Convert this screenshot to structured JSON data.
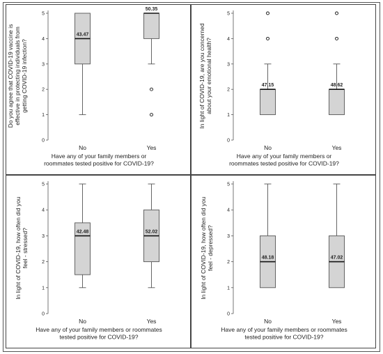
{
  "chart_data": [
    {
      "type": "boxplot",
      "title": "",
      "xlabel": [
        "Have any of your family members or",
        "roommates tested positive for COVID-19?"
      ],
      "ylabel": [
        "Do you agree that COVID-19 vaccine is",
        "effective in protecting individuals from",
        "getting COVID-19 infection?"
      ],
      "ylim": [
        0,
        5
      ],
      "yticks": [
        "0",
        "1",
        "2",
        "3",
        "4",
        "5"
      ],
      "grid": false,
      "categories": [
        "No",
        "Yes"
      ],
      "boxes": [
        {
          "category": "No",
          "whisker_low": 1,
          "q1": 3,
          "median": 4,
          "q3": 5,
          "whisker_high": 5,
          "outliers": [],
          "label": "43.47"
        },
        {
          "category": "Yes",
          "whisker_low": 3,
          "q1": 4,
          "median": 5,
          "q3": 5,
          "whisker_high": 5,
          "outliers": [
            1,
            2
          ],
          "label": "50.35"
        }
      ]
    },
    {
      "type": "boxplot",
      "title": "",
      "xlabel": [
        "Have any of your family members or",
        "roommates tested positive for COVID-19?"
      ],
      "ylabel": [
        "In light of COVID-19, are you concerned",
        "about your emotional health?"
      ],
      "ylim": [
        0,
        5
      ],
      "yticks": [
        "0",
        "1",
        "2",
        "3",
        "4",
        "5"
      ],
      "grid": false,
      "categories": [
        "No",
        "Yes"
      ],
      "boxes": [
        {
          "category": "No",
          "whisker_low": 1,
          "q1": 1,
          "median": 2,
          "q3": 2,
          "whisker_high": 3,
          "outliers": [
            4,
            5
          ],
          "label": "47.15"
        },
        {
          "category": "Yes",
          "whisker_low": 1,
          "q1": 1,
          "median": 2,
          "q3": 2,
          "whisker_high": 3,
          "outliers": [
            4,
            5
          ],
          "label": "48.62"
        }
      ]
    },
    {
      "type": "boxplot",
      "title": "",
      "xlabel": [
        "Have any of your family members or roommates",
        "tested positive for COVID-19?"
      ],
      "ylabel": [
        "In light of COVID-19, how often did you",
        "feel - stressed?"
      ],
      "ylim": [
        0,
        5
      ],
      "yticks": [
        "0",
        "1",
        "2",
        "3",
        "4",
        "5"
      ],
      "grid": false,
      "categories": [
        "No",
        "Yes"
      ],
      "boxes": [
        {
          "category": "No",
          "whisker_low": 1,
          "q1": 1.5,
          "median": 3,
          "q3": 3.5,
          "whisker_high": 5,
          "outliers": [],
          "label": "42.48"
        },
        {
          "category": "Yes",
          "whisker_low": 1,
          "q1": 2,
          "median": 3,
          "q3": 4,
          "whisker_high": 5,
          "outliers": [],
          "label": "52.02"
        }
      ]
    },
    {
      "type": "boxplot",
      "title": "",
      "xlabel": [
        "Have any of your family members or roommates",
        "tested positive for COVID-19?"
      ],
      "ylabel": [
        "In light of COVID-19, how often did you",
        "feel - depressed?"
      ],
      "ylim": [
        0,
        5
      ],
      "yticks": [
        "0",
        "1",
        "2",
        "3",
        "4",
        "5"
      ],
      "grid": false,
      "categories": [
        "No",
        "Yes"
      ],
      "boxes": [
        {
          "category": "No",
          "whisker_low": 1,
          "q1": 1,
          "median": 2,
          "q3": 3,
          "whisker_high": 5,
          "outliers": [],
          "label": "48.18"
        },
        {
          "category": "Yes",
          "whisker_low": 1,
          "q1": 1,
          "median": 2,
          "q3": 3,
          "whisker_high": 5,
          "outliers": [],
          "label": "47.02"
        }
      ]
    }
  ],
  "colors": {
    "box_fill": "#d4d4d4",
    "stroke": "#555555",
    "median": "#111111",
    "text": "#222222"
  }
}
